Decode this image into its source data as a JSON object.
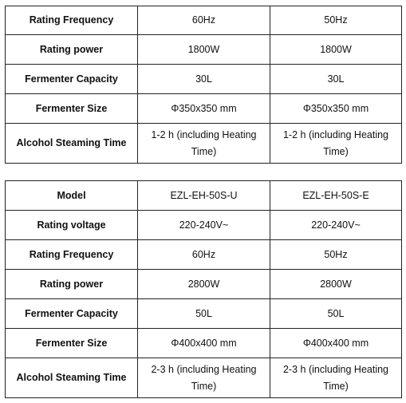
{
  "table_top": {
    "rows": [
      {
        "label": "Rating Frequency",
        "a": "60Hz",
        "b": "50Hz"
      },
      {
        "label": "Rating power",
        "a": "1800W",
        "b": "1800W"
      },
      {
        "label": "Fermenter Capacity",
        "a": "30L",
        "b": "30L"
      },
      {
        "label": "Fermenter Size",
        "a": "Φ350x350 mm",
        "b": "Φ350x350 mm"
      },
      {
        "label": "Alcohol Steaming Time",
        "a_line1": "1-2 h (including Heating",
        "a_line2": "Time)",
        "b_line1": "1-2 h (including Heating",
        "b_line2": "Time)"
      }
    ]
  },
  "table_bottom": {
    "rows": [
      {
        "label": "Model",
        "a": "EZL-EH-50S-U",
        "b": "EZL-EH-50S-E"
      },
      {
        "label": "Rating voltage",
        "a": "220-240V~",
        "b": "220-240V~"
      },
      {
        "label": "Rating Frequency",
        "a": "60Hz",
        "b": "50Hz"
      },
      {
        "label": "Rating power",
        "a": "2800W",
        "b": "2800W"
      },
      {
        "label": "Fermenter Capacity",
        "a": "50L",
        "b": "50L"
      },
      {
        "label": "Fermenter Size",
        "a": "Φ400x400 mm",
        "b": "Φ400x400 mm"
      },
      {
        "label": "Alcohol Steaming Time",
        "a_line1": "2-3 h (including Heating",
        "a_line2": "Time)",
        "b_line1": "2-3 h (including Heating",
        "b_line2": "Time)"
      }
    ]
  }
}
